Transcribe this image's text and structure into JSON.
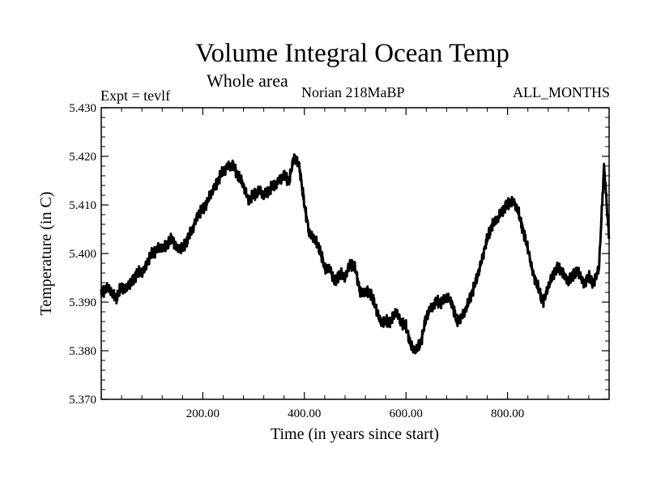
{
  "header": {
    "title": "Volume Integral Ocean Temp",
    "subtitle": "Whole area",
    "left_label": "Expt = tevlf",
    "center_label": "Norian 218MaBP",
    "right_label": "ALL_MONTHS"
  },
  "chart_data": {
    "type": "line",
    "title": "Volume Integral Ocean Temp",
    "subtitle": "Whole area",
    "xlabel": "Time (in years since start)",
    "ylabel": "Temperature (in C)",
    "xlim": [
      0,
      1000
    ],
    "ylim": [
      5.37,
      5.43
    ],
    "x_ticks": [
      200,
      400,
      600,
      800
    ],
    "x_tick_labels": [
      "200.00",
      "400.00",
      "600.00",
      "800.00"
    ],
    "y_ticks": [
      5.37,
      5.38,
      5.39,
      5.4,
      5.41,
      5.42,
      5.43
    ],
    "y_tick_labels": [
      "5.370",
      "5.380",
      "5.390",
      "5.400",
      "5.410",
      "5.420",
      "5.430"
    ],
    "grid": false,
    "line_color": "#000000",
    "series": [
      {
        "name": "Volume Integral Ocean Temp",
        "x": [
          0,
          10,
          20,
          30,
          40,
          50,
          60,
          70,
          80,
          90,
          100,
          110,
          120,
          130,
          140,
          150,
          160,
          170,
          180,
          190,
          200,
          210,
          220,
          230,
          240,
          250,
          260,
          270,
          280,
          290,
          300,
          310,
          320,
          330,
          340,
          350,
          360,
          370,
          380,
          390,
          400,
          410,
          420,
          430,
          440,
          450,
          460,
          470,
          480,
          490,
          500,
          510,
          520,
          530,
          540,
          550,
          560,
          570,
          580,
          590,
          600,
          610,
          620,
          630,
          640,
          650,
          660,
          670,
          680,
          690,
          700,
          710,
          720,
          730,
          740,
          750,
          760,
          770,
          780,
          790,
          800,
          810,
          820,
          830,
          840,
          850,
          860,
          870,
          880,
          890,
          900,
          910,
          920,
          930,
          940,
          950,
          960,
          970,
          980,
          990,
          1000
        ],
        "values": [
          5.392,
          5.393,
          5.392,
          5.391,
          5.393,
          5.393,
          5.394,
          5.396,
          5.396,
          5.398,
          5.4,
          5.401,
          5.401,
          5.402,
          5.403,
          5.401,
          5.401,
          5.403,
          5.405,
          5.408,
          5.409,
          5.411,
          5.413,
          5.415,
          5.417,
          5.418,
          5.418,
          5.416,
          5.414,
          5.411,
          5.412,
          5.413,
          5.412,
          5.413,
          5.414,
          5.415,
          5.416,
          5.415,
          5.42,
          5.418,
          5.41,
          5.404,
          5.403,
          5.401,
          5.397,
          5.397,
          5.394,
          5.396,
          5.395,
          5.398,
          5.397,
          5.392,
          5.392,
          5.392,
          5.389,
          5.386,
          5.386,
          5.386,
          5.388,
          5.386,
          5.385,
          5.381,
          5.38,
          5.382,
          5.387,
          5.389,
          5.39,
          5.39,
          5.391,
          5.39,
          5.386,
          5.387,
          5.389,
          5.392,
          5.395,
          5.399,
          5.403,
          5.406,
          5.407,
          5.409,
          5.41,
          5.411,
          5.409,
          5.405,
          5.401,
          5.396,
          5.393,
          5.39,
          5.393,
          5.396,
          5.397,
          5.396,
          5.394,
          5.396,
          5.396,
          5.394,
          5.395,
          5.394,
          5.397,
          5.418,
          5.403
        ]
      }
    ]
  }
}
